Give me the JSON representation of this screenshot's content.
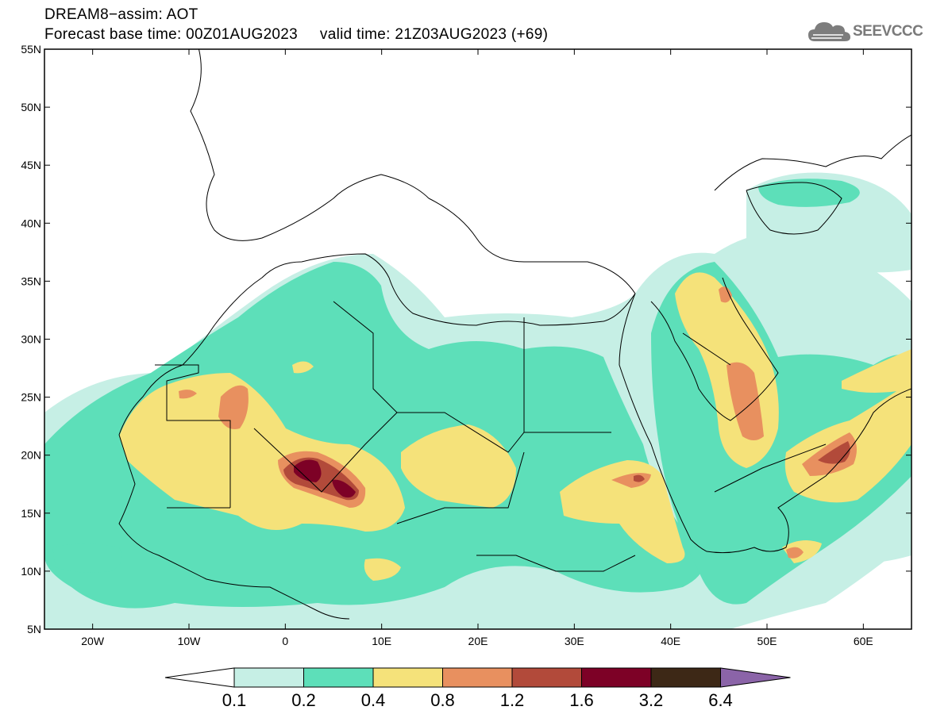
{
  "header": {
    "title_line1": "DREAM8−assim: AOT",
    "title_line2": "Forecast base time: 00Z01AUG2023     valid time: 21Z03AUG2023 (+69)",
    "logo_text": "SEEVCCC",
    "logo_icon": "cloud-icon"
  },
  "map": {
    "lon_range": [
      -25,
      65
    ],
    "lat_range": [
      5,
      55
    ],
    "lat_labels": [
      {
        "lat": 55,
        "text": "55N"
      },
      {
        "lat": 50,
        "text": "50N"
      },
      {
        "lat": 45,
        "text": "45N"
      },
      {
        "lat": 40,
        "text": "40N"
      },
      {
        "lat": 35,
        "text": "35N"
      },
      {
        "lat": 30,
        "text": "30N"
      },
      {
        "lat": 25,
        "text": "25N"
      },
      {
        "lat": 20,
        "text": "20N"
      },
      {
        "lat": 15,
        "text": "15N"
      },
      {
        "lat": 10,
        "text": "10N"
      },
      {
        "lat": 5,
        "text": "5N"
      }
    ],
    "lon_labels": [
      {
        "lon": -20,
        "text": "20W"
      },
      {
        "lon": -10,
        "text": "10W"
      },
      {
        "lon": 0,
        "text": "0"
      },
      {
        "lon": 10,
        "text": "10E"
      },
      {
        "lon": 20,
        "text": "20E"
      },
      {
        "lon": 30,
        "text": "30E"
      },
      {
        "lon": 40,
        "text": "40E"
      },
      {
        "lon": 50,
        "text": "50E"
      },
      {
        "lon": 60,
        "text": "60E"
      }
    ]
  },
  "colorbar": {
    "colors": [
      "#ffffff",
      "#c6efe5",
      "#5ddfb9",
      "#f5e27a",
      "#e8905f",
      "#b24a3a",
      "#7d0126",
      "#3d2816",
      "#8b64a8"
    ],
    "labels": [
      "0.1",
      "0.2",
      "0.4",
      "0.8",
      "1.2",
      "1.6",
      "3.2",
      "6.4"
    ]
  }
}
